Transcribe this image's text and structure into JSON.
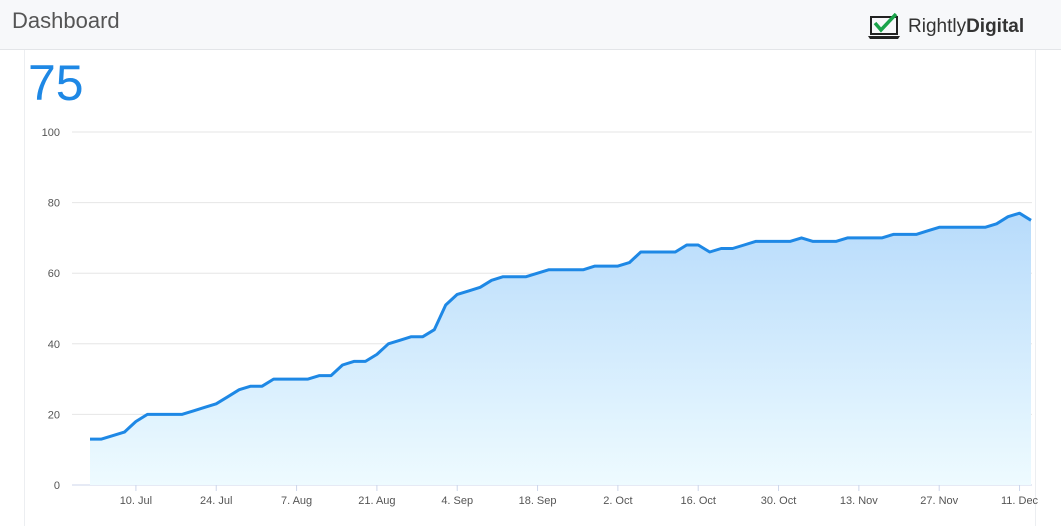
{
  "header": {
    "title": "Dashboard",
    "logo": {
      "light": "Rightly",
      "bold": "Digital"
    }
  },
  "current_value": 75,
  "chart_data": {
    "type": "area",
    "categories": [
      null,
      null,
      null,
      null,
      "10. Jul",
      null,
      null,
      null,
      null,
      null,
      null,
      "24. Jul",
      null,
      null,
      null,
      null,
      null,
      null,
      "7. Aug",
      null,
      null,
      null,
      null,
      null,
      null,
      "21. Aug",
      null,
      null,
      null,
      null,
      null,
      null,
      "4. Sep",
      null,
      null,
      null,
      null,
      null,
      null,
      "18. Sep",
      null,
      null,
      null,
      null,
      null,
      null,
      "2. Oct",
      null,
      null,
      null,
      null,
      null,
      null,
      "16. Oct",
      null,
      null,
      null,
      null,
      null,
      null,
      "30. Oct",
      null,
      null,
      null,
      null,
      null,
      null,
      "13. Nov",
      null,
      null,
      null,
      null,
      null,
      null,
      "27. Nov",
      null,
      null,
      null,
      null,
      null,
      null,
      "11. Dec",
      null
    ],
    "values": [
      13,
      13,
      14,
      15,
      18,
      20,
      20,
      20,
      20,
      21,
      22,
      23,
      25,
      27,
      28,
      28,
      30,
      30,
      30,
      30,
      31,
      31,
      34,
      35,
      35,
      37,
      40,
      41,
      42,
      42,
      44,
      51,
      54,
      55,
      56,
      58,
      59,
      59,
      59,
      60,
      61,
      61,
      61,
      61,
      62,
      62,
      62,
      63,
      66,
      66,
      66,
      66,
      68,
      68,
      66,
      67,
      67,
      68,
      69,
      69,
      69,
      69,
      70,
      69,
      69,
      69,
      70,
      70,
      70,
      70,
      71,
      71,
      71,
      72,
      73,
      73,
      73,
      73,
      73,
      74,
      76,
      77,
      75
    ],
    "color": "#1e88e5",
    "ylim": [
      0,
      100
    ],
    "yticks": [
      0,
      20,
      40,
      60,
      80,
      100
    ],
    "grid": true
  }
}
